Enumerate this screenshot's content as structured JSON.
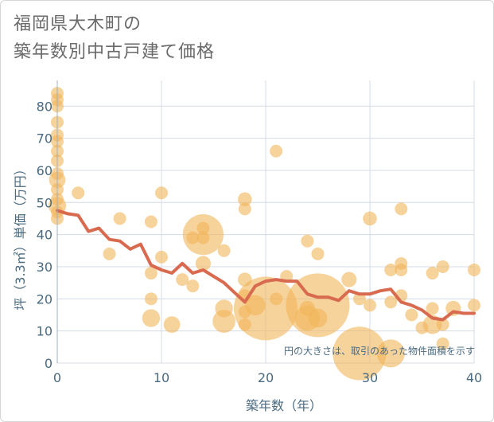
{
  "page": {
    "title_line1": "福岡県大木町の",
    "title_line2": "築年数別中古戸建て価格"
  },
  "chart_data": {
    "type": "scatter",
    "title": "福岡県大木町の築年数別中古戸建て価格",
    "xlabel": "築年数（年）",
    "ylabel": "坪（3.3㎡）単価（万円）",
    "xlim": [
      0,
      40
    ],
    "ylim": [
      0,
      88
    ],
    "x_ticks": [
      0,
      10,
      20,
      30,
      40
    ],
    "y_ticks": [
      0,
      10,
      20,
      30,
      40,
      50,
      60,
      70,
      80
    ],
    "grid": true,
    "annotation": "円の大きさは、取引のあった物件面積を示す",
    "colors": {
      "point": "#f2b65a",
      "trend": "#d86a4f",
      "grid": "#d4dbe5",
      "axis_text": "#4a6a80"
    },
    "points": [
      {
        "x": 0,
        "y": 84,
        "size": 1
      },
      {
        "x": 0,
        "y": 82,
        "size": 1
      },
      {
        "x": 0,
        "y": 80,
        "size": 1
      },
      {
        "x": 0,
        "y": 75,
        "size": 1
      },
      {
        "x": 0,
        "y": 71,
        "size": 1
      },
      {
        "x": 0,
        "y": 69,
        "size": 1
      },
      {
        "x": 0,
        "y": 66,
        "size": 1
      },
      {
        "x": 0,
        "y": 63,
        "size": 1
      },
      {
        "x": 0,
        "y": 59,
        "size": 1
      },
      {
        "x": 0,
        "y": 57,
        "size": 1.3
      },
      {
        "x": 0,
        "y": 54,
        "size": 1
      },
      {
        "x": 0,
        "y": 51,
        "size": 1
      },
      {
        "x": 0,
        "y": 49,
        "size": 1.4
      },
      {
        "x": 0,
        "y": 47,
        "size": 1
      },
      {
        "x": 0,
        "y": 45,
        "size": 1
      },
      {
        "x": 2,
        "y": 53,
        "size": 1
      },
      {
        "x": 5,
        "y": 34,
        "size": 1
      },
      {
        "x": 6,
        "y": 45,
        "size": 1
      },
      {
        "x": 9,
        "y": 44,
        "size": 1
      },
      {
        "x": 9,
        "y": 28,
        "size": 1
      },
      {
        "x": 9,
        "y": 20,
        "size": 1
      },
      {
        "x": 9,
        "y": 14,
        "size": 1.4
      },
      {
        "x": 10,
        "y": 53,
        "size": 1
      },
      {
        "x": 10,
        "y": 33,
        "size": 1
      },
      {
        "x": 11,
        "y": 12,
        "size": 1.3
      },
      {
        "x": 12,
        "y": 26,
        "size": 1
      },
      {
        "x": 13,
        "y": 39,
        "size": 1
      },
      {
        "x": 13,
        "y": 24,
        "size": 1
      },
      {
        "x": 14,
        "y": 40,
        "size": 3.2
      },
      {
        "x": 14,
        "y": 42,
        "size": 1
      },
      {
        "x": 14,
        "y": 39,
        "size": 1
      },
      {
        "x": 14,
        "y": 31,
        "size": 1.2
      },
      {
        "x": 16,
        "y": 35,
        "size": 1
      },
      {
        "x": 16,
        "y": 17,
        "size": 1.4
      },
      {
        "x": 16,
        "y": 13,
        "size": 1.8
      },
      {
        "x": 18,
        "y": 51,
        "size": 1.1
      },
      {
        "x": 18,
        "y": 48,
        "size": 1
      },
      {
        "x": 18,
        "y": 26,
        "size": 1.1
      },
      {
        "x": 18,
        "y": 21,
        "size": 1
      },
      {
        "x": 18,
        "y": 16,
        "size": 1
      },
      {
        "x": 18,
        "y": 12,
        "size": 1
      },
      {
        "x": 19,
        "y": 18,
        "size": 1.6
      },
      {
        "x": 20,
        "y": 17,
        "size": 5
      },
      {
        "x": 21,
        "y": 66,
        "size": 1
      },
      {
        "x": 21,
        "y": 20,
        "size": 1
      },
      {
        "x": 22,
        "y": 27,
        "size": 1
      },
      {
        "x": 24,
        "y": 38,
        "size": 1
      },
      {
        "x": 24,
        "y": 17,
        "size": 1.2
      },
      {
        "x": 24,
        "y": 14,
        "size": 2
      },
      {
        "x": 25,
        "y": 34,
        "size": 1
      },
      {
        "x": 25,
        "y": 18,
        "size": 5
      },
      {
        "x": 25,
        "y": 14,
        "size": 1.5
      },
      {
        "x": 28,
        "y": 26,
        "size": 1.2
      },
      {
        "x": 29,
        "y": 3,
        "size": 4.2
      },
      {
        "x": 29,
        "y": 20,
        "size": 1
      },
      {
        "x": 30,
        "y": 45,
        "size": 1.1
      },
      {
        "x": 30,
        "y": 18,
        "size": 1
      },
      {
        "x": 32,
        "y": 29,
        "size": 1
      },
      {
        "x": 32,
        "y": 19,
        "size": 1
      },
      {
        "x": 32,
        "y": 3,
        "size": 2.2
      },
      {
        "x": 33,
        "y": 48,
        "size": 1
      },
      {
        "x": 33,
        "y": 31,
        "size": 1
      },
      {
        "x": 33,
        "y": 29,
        "size": 1
      },
      {
        "x": 33,
        "y": 21,
        "size": 1
      },
      {
        "x": 34,
        "y": 15,
        "size": 1
      },
      {
        "x": 35,
        "y": 11,
        "size": 1
      },
      {
        "x": 36,
        "y": 28,
        "size": 1
      },
      {
        "x": 36,
        "y": 17,
        "size": 1
      },
      {
        "x": 36,
        "y": 12,
        "size": 1.5
      },
      {
        "x": 37,
        "y": 30,
        "size": 1
      },
      {
        "x": 37,
        "y": 12,
        "size": 1
      },
      {
        "x": 37,
        "y": 6,
        "size": 1
      },
      {
        "x": 38,
        "y": 17,
        "size": 1.2
      },
      {
        "x": 40,
        "y": 29,
        "size": 1
      },
      {
        "x": 40,
        "y": 18,
        "size": 1
      }
    ],
    "trend": {
      "x": [
        0,
        1,
        2,
        3,
        4,
        5,
        6,
        7,
        8,
        9,
        10,
        11,
        12,
        13,
        14,
        15,
        16,
        17,
        18,
        19,
        20,
        21,
        22,
        23,
        24,
        25,
        26,
        27,
        28,
        29,
        30,
        31,
        32,
        33,
        34,
        35,
        36,
        37,
        38,
        39,
        40
      ],
      "y": [
        47.5,
        46.5,
        46,
        41,
        42,
        38.5,
        38,
        35.5,
        37,
        30.5,
        29,
        28,
        31,
        28,
        29,
        27,
        25,
        22,
        19,
        24,
        25.5,
        26,
        25.5,
        25.5,
        21.5,
        20.5,
        20.5,
        19.5,
        22.5,
        21.5,
        21.5,
        22.5,
        23,
        19,
        18,
        16.5,
        14,
        13.5,
        16,
        15.5,
        15.5
      ]
    }
  }
}
